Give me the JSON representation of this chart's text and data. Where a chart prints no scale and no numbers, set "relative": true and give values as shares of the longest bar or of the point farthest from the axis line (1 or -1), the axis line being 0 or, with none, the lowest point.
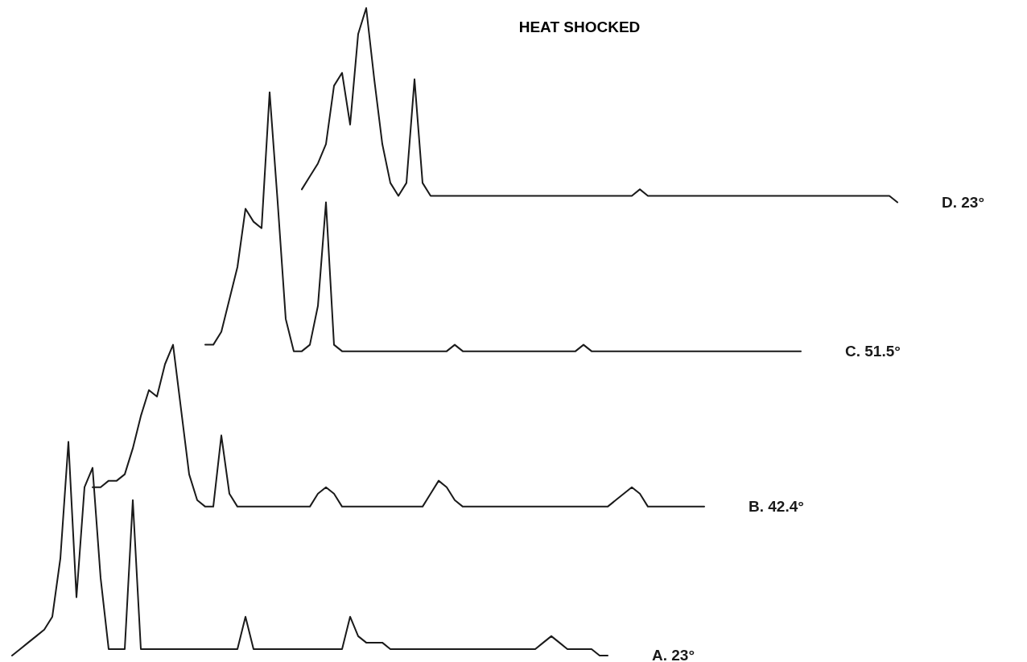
{
  "chart_data": {
    "type": "line",
    "title": "HEAT SHOCKED",
    "relative": true,
    "line_style": "solid",
    "categories": [
      null,
      null,
      null,
      null,
      null,
      null,
      null,
      null,
      null,
      null,
      null,
      null,
      null,
      null,
      null,
      null,
      null,
      null,
      null,
      null,
      null,
      null,
      null,
      null,
      null,
      null,
      null,
      null,
      null,
      null,
      null,
      null,
      null,
      null,
      null,
      null,
      null,
      null,
      null,
      null,
      null,
      null,
      null,
      null,
      null,
      null,
      null,
      null,
      null,
      null,
      null,
      null,
      null,
      null,
      null,
      null,
      null,
      null,
      null,
      null,
      null,
      null,
      null,
      null,
      null,
      null,
      null,
      null,
      null,
      null,
      null,
      null,
      null,
      null,
      null,
      null,
      null,
      null,
      null,
      null,
      null,
      null,
      null,
      null,
      null,
      null,
      null,
      null,
      null,
      null,
      null,
      null,
      null,
      null,
      null,
      null,
      null,
      null,
      null,
      null,
      null,
      null,
      null,
      null,
      null,
      null,
      null,
      null,
      null,
      null,
      null,
      null
    ],
    "series": [
      {
        "name": "A. 23°",
        "color": "#1a1a1a",
        "values": [
          null,
          0.0,
          0.01,
          0.02,
          0.03,
          0.04,
          0.06,
          0.15,
          0.33,
          0.09,
          0.26,
          0.29,
          0.12,
          0.01,
          0.01,
          0.01,
          0.24,
          0.01,
          0.01,
          0.01,
          0.01,
          0.01,
          0.01,
          0.01,
          0.01,
          0.01,
          0.01,
          0.01,
          0.01,
          0.01,
          0.06,
          0.01,
          0.01,
          0.01,
          0.01,
          0.01,
          0.01,
          0.01,
          0.01,
          0.01,
          0.01,
          0.01,
          0.01,
          0.06,
          0.03,
          0.02,
          0.02,
          0.02,
          0.01,
          0.01,
          0.01,
          0.01,
          0.01,
          0.01,
          0.01,
          0.01,
          0.01,
          0.01,
          0.01,
          0.01,
          0.01,
          0.01,
          0.01,
          0.01,
          0.01,
          0.01,
          0.01,
          0.02,
          0.03,
          0.02,
          0.01,
          0.01,
          0.01,
          0.01,
          0.0,
          0.0,
          null,
          null,
          null,
          null,
          null,
          null,
          null,
          null,
          null,
          null,
          null,
          null,
          null,
          null,
          null,
          null,
          null,
          null,
          null,
          null,
          null,
          null,
          null,
          null,
          null,
          null,
          null,
          null,
          null,
          null,
          null,
          null,
          null,
          null,
          null,
          null
        ]
      },
      {
        "name": "B. 42.4°",
        "color": "#1a1a1a",
        "values": [
          null,
          null,
          null,
          null,
          null,
          null,
          null,
          null,
          null,
          null,
          null,
          0.26,
          0.26,
          0.27,
          0.27,
          0.28,
          0.32,
          0.37,
          0.41,
          0.4,
          0.45,
          0.48,
          0.38,
          0.28,
          0.24,
          0.23,
          0.23,
          0.34,
          0.25,
          0.23,
          0.23,
          0.23,
          0.23,
          0.23,
          0.23,
          0.23,
          0.23,
          0.23,
          0.23,
          0.25,
          0.26,
          0.25,
          0.23,
          0.23,
          0.23,
          0.23,
          0.23,
          0.23,
          0.23,
          0.23,
          0.23,
          0.23,
          0.23,
          0.25,
          0.27,
          0.26,
          0.24,
          0.23,
          0.23,
          0.23,
          0.23,
          0.23,
          0.23,
          0.23,
          0.23,
          0.23,
          0.23,
          0.23,
          0.23,
          0.23,
          0.23,
          0.23,
          0.23,
          0.23,
          0.23,
          0.23,
          0.24,
          0.25,
          0.26,
          0.25,
          0.23,
          0.23,
          0.23,
          0.23,
          0.23,
          0.23,
          0.23,
          0.23,
          null,
          null,
          null,
          null,
          null,
          null,
          null,
          null,
          null,
          null,
          null,
          null,
          null,
          null,
          null,
          null,
          null,
          null,
          null,
          null,
          null,
          null,
          null,
          null
        ]
      },
      {
        "name": "C. 51.5°",
        "color": "#1a1a1a",
        "values": [
          null,
          null,
          null,
          null,
          null,
          null,
          null,
          null,
          null,
          null,
          null,
          null,
          null,
          null,
          null,
          null,
          null,
          null,
          null,
          null,
          null,
          null,
          null,
          null,
          null,
          0.48,
          0.48,
          0.5,
          0.55,
          0.6,
          0.69,
          0.67,
          0.66,
          0.87,
          0.7,
          0.52,
          0.47,
          0.47,
          0.48,
          0.54,
          0.7,
          0.48,
          0.47,
          0.47,
          0.47,
          0.47,
          0.47,
          0.47,
          0.47,
          0.47,
          0.47,
          0.47,
          0.47,
          0.47,
          0.47,
          0.47,
          0.48,
          0.47,
          0.47,
          0.47,
          0.47,
          0.47,
          0.47,
          0.47,
          0.47,
          0.47,
          0.47,
          0.47,
          0.47,
          0.47,
          0.47,
          0.47,
          0.48,
          0.47,
          0.47,
          0.47,
          0.47,
          0.47,
          0.47,
          0.47,
          0.47,
          0.47,
          0.47,
          0.47,
          0.47,
          0.47,
          0.47,
          0.47,
          0.47,
          0.47,
          0.47,
          0.47,
          0.47,
          0.47,
          0.47,
          0.47,
          0.47,
          0.47,
          0.47,
          0.47,
          null,
          null,
          null,
          null,
          null,
          null,
          null,
          null,
          null,
          null,
          null,
          null
        ]
      },
      {
        "name": "D. 23°",
        "color": "#1a1a1a",
        "values": [
          null,
          null,
          null,
          null,
          null,
          null,
          null,
          null,
          null,
          null,
          null,
          null,
          null,
          null,
          null,
          null,
          null,
          null,
          null,
          null,
          null,
          null,
          null,
          null,
          null,
          null,
          null,
          null,
          null,
          null,
          null,
          null,
          null,
          null,
          null,
          null,
          null,
          0.72,
          0.74,
          0.76,
          0.79,
          0.88,
          0.9,
          0.82,
          0.96,
          1.0,
          0.89,
          0.79,
          0.73,
          0.71,
          0.73,
          0.89,
          0.73,
          0.71,
          0.71,
          0.71,
          0.71,
          0.71,
          0.71,
          0.71,
          0.71,
          0.71,
          0.71,
          0.71,
          0.71,
          0.71,
          0.71,
          0.71,
          0.71,
          0.71,
          0.71,
          0.71,
          0.71,
          0.71,
          0.71,
          0.71,
          0.71,
          0.71,
          0.71,
          0.72,
          0.71,
          0.71,
          0.71,
          0.71,
          0.71,
          0.71,
          0.71,
          0.71,
          0.71,
          0.71,
          0.71,
          0.71,
          0.71,
          0.71,
          0.71,
          0.71,
          0.71,
          0.71,
          0.71,
          0.71,
          0.71,
          0.71,
          0.71,
          0.71,
          0.71,
          0.71,
          0.71,
          0.71,
          0.71,
          0.71,
          0.71,
          0.7
        ]
      }
    ]
  }
}
